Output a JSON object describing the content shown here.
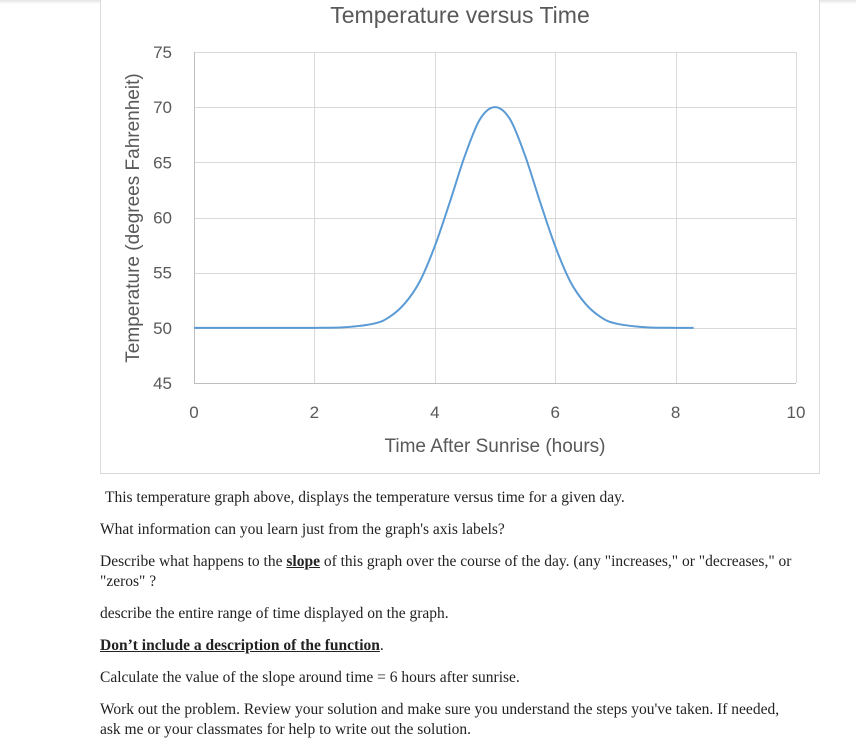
{
  "chart_data": {
    "type": "line",
    "title": "Temperature versus Time",
    "xlabel": "Time After Sunrise (hours)",
    "ylabel": "Temperature (degrees Fahrenheit)",
    "xlim": [
      0,
      10
    ],
    "ylim": [
      45,
      75
    ],
    "xticks": [
      0,
      2,
      4,
      6,
      8,
      10
    ],
    "yticks": [
      45,
      50,
      55,
      60,
      65,
      70,
      75
    ],
    "grid": true,
    "series": [
      {
        "name": "Temperature",
        "color": "#5b9bd5",
        "x": [
          0,
          1,
          2,
          2.5,
          3,
          3.25,
          3.5,
          3.75,
          4,
          4.25,
          4.5,
          4.75,
          5,
          5.25,
          5.5,
          5.75,
          6,
          6.25,
          6.5,
          6.75,
          7,
          7.5,
          8,
          8.3
        ],
        "y": [
          50,
          50,
          50,
          50.05,
          50.4,
          51.0,
          52.2,
          54.2,
          57.4,
          61.4,
          65.6,
          68.9,
          70,
          68.9,
          65.6,
          61.4,
          57.4,
          54.2,
          52.2,
          51.0,
          50.4,
          50.05,
          50,
          50
        ]
      }
    ]
  },
  "text": {
    "intro": "This temperature graph above, displays the temperature versus time for a given day.",
    "q1": "What information can you learn just from the graph's axis labels?",
    "q2_before": "Describe what happens to the ",
    "q2_slope": "slope",
    "q2_after": " of this graph over the course of the day. (any \"increases,\" or \"decreases,\" or \"zeros\" ?",
    "q3": "describe the entire range of time displayed on the graph.",
    "q4_bold": "Don’t include a description of the function",
    "q4_period": ".",
    "q5": "Calculate the value of the slope around time = 6 hours after sunrise.",
    "q6": "Work out the problem. Review your solution and make sure you understand the steps you've taken. If needed, ask me or your classmates for help to write out the solution."
  }
}
